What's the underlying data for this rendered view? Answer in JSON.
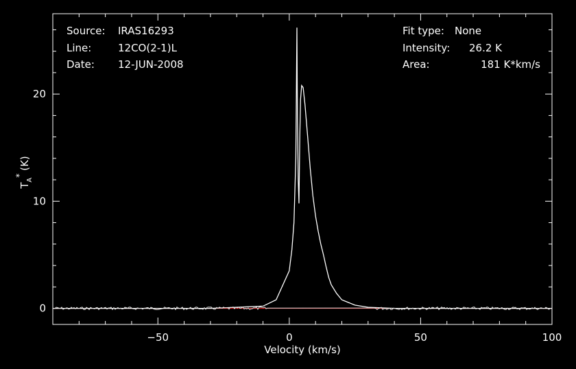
{
  "info": {
    "source_label": "Source:",
    "source_value": "IRAS16293",
    "line_label": "Line:",
    "line_value": "12CO(2-1)L",
    "date_label": "Date:",
    "date_value": "12-JUN-2008",
    "fit_label": "Fit type:",
    "fit_value": "None",
    "intensity_label": "Intensity:",
    "intensity_value": "26.2 K",
    "area_label": "Area:",
    "area_value": "181 K*km/s"
  },
  "chart_data": {
    "type": "line",
    "xlabel": "Velocity (km/s)",
    "ylabel_main": "T",
    "ylabel_sub": "A",
    "ylabel_sup": "*",
    "ylabel_unit": "(K)",
    "xlim": [
      -90,
      100
    ],
    "ylim": [
      -1.5,
      27.5
    ],
    "x_ticks": [
      -50,
      0,
      50,
      100
    ],
    "x_tick_labels": [
      "−50",
      "0",
      "50",
      "100"
    ],
    "y_ticks": [
      0,
      10,
      20
    ],
    "y_tick_labels": [
      "0",
      "10",
      "20"
    ],
    "baseline": 0,
    "colors": {
      "spectrum": "#ffffff",
      "baseline": "#cc0000",
      "axes": "#ffffff"
    },
    "series": [
      {
        "x": [
          -90,
          -60,
          -30,
          -10,
          -5,
          0,
          1,
          1.8,
          2.5,
          2.9,
          3.1,
          3.4,
          3.7,
          4.0,
          4.3,
          4.7,
          5.3,
          6.0,
          7,
          8,
          9,
          10,
          11,
          12,
          13,
          14,
          15,
          16,
          18,
          20,
          25,
          30,
          40,
          60,
          100
        ],
        "y": [
          0,
          0,
          0,
          0.2,
          0.8,
          3.5,
          5.5,
          8.0,
          14.0,
          26.2,
          18.0,
          12.0,
          9.8,
          16.0,
          19.5,
          20.8,
          20.6,
          19.0,
          16.0,
          13.0,
          10.5,
          8.6,
          7.2,
          6.0,
          5.0,
          3.9,
          2.9,
          2.2,
          1.4,
          0.8,
          0.3,
          0.1,
          0,
          0,
          0
        ]
      }
    ]
  }
}
